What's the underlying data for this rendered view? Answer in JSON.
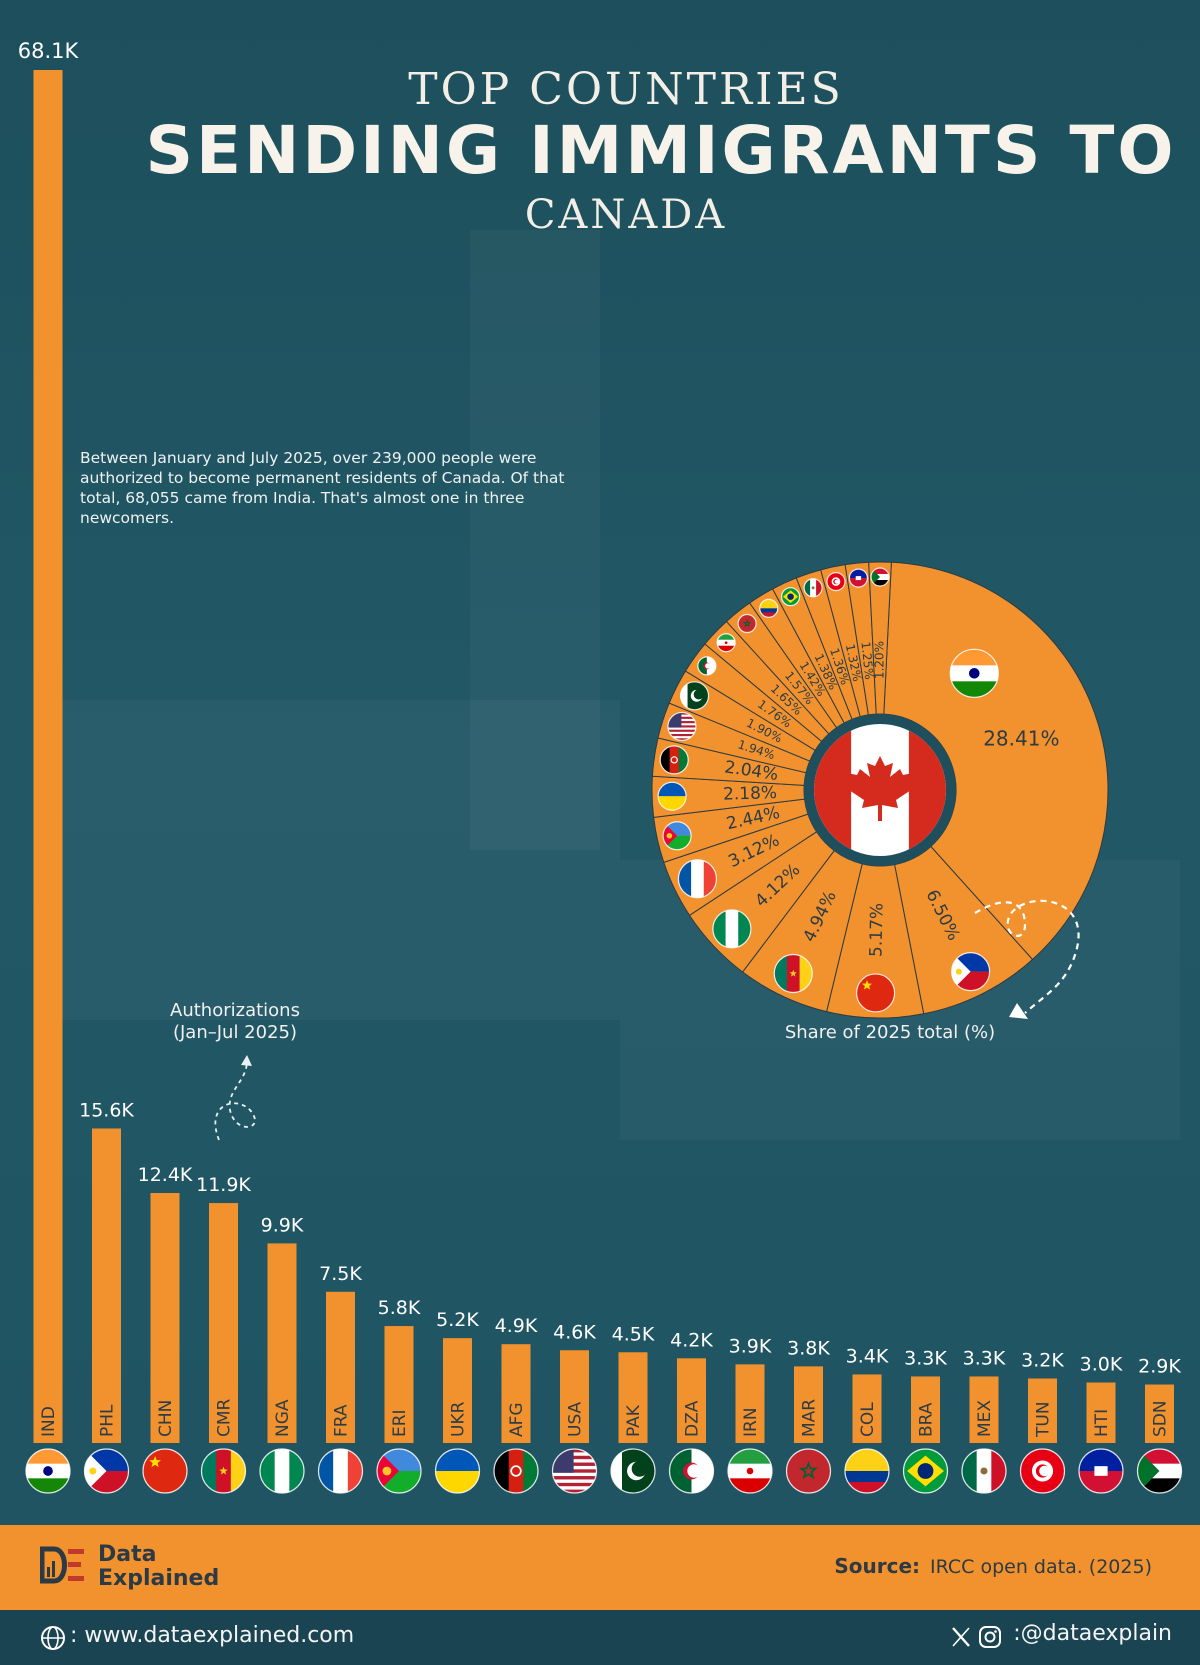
{
  "header": {
    "line1": "TOP COUNTRIES",
    "line2": "SENDING IMMIGRANTS TO",
    "line3": "CANADA"
  },
  "intro_text": "Between January and July 2025, over 239,000 people were authorized to become permanent residents of Canada. Of that total, 68,055 came from India. That's almost one in three newcomers.",
  "bar_axis_note": "Authorizations (Jan–Jul 2025)",
  "pie_caption": "Share of 2025 total (%)",
  "colors": {
    "bar": "#f2922e",
    "background": "#1f5361",
    "footer": "#f2922e",
    "footer_bottom": "#1a4452"
  },
  "chart_data": [
    {
      "type": "bar",
      "categories": [
        "IND",
        "PHL",
        "CHN",
        "CMR",
        "NGA",
        "FRA",
        "ERI",
        "UKR",
        "AFG",
        "USA",
        "PAK",
        "DZA",
        "IRN",
        "MAR",
        "COL",
        "BRA",
        "MEX",
        "TUN",
        "HTI",
        "SDN"
      ],
      "values": [
        68.1,
        15.6,
        12.4,
        11.9,
        9.9,
        7.5,
        5.8,
        5.2,
        4.9,
        4.6,
        4.5,
        4.2,
        3.9,
        3.8,
        3.4,
        3.3,
        3.3,
        3.2,
        3.0,
        2.9
      ],
      "value_labels": [
        "68.1K",
        "15.6K",
        "12.4K",
        "11.9K",
        "9.9K",
        "7.5K",
        "5.8K",
        "5.2K",
        "4.9K",
        "4.6K",
        "4.5K",
        "4.2K",
        "3.9K",
        "3.8K",
        "3.4K",
        "3.3K",
        "3.3K",
        "3.2K",
        "3.0K",
        "2.9K"
      ],
      "ylim": [
        0,
        68.1
      ],
      "grid": false
    },
    {
      "type": "pie",
      "categories": [
        "IND",
        "PHL",
        "CHN",
        "CMR",
        "NGA",
        "FRA",
        "ERI",
        "UKR",
        "AFG",
        "USA",
        "PAK",
        "DZA",
        "IRN",
        "MAR",
        "COL",
        "BRA",
        "MEX",
        "TUN",
        "HTI",
        "SDN"
      ],
      "values": [
        28.41,
        6.5,
        5.17,
        4.94,
        4.12,
        3.12,
        2.44,
        2.18,
        2.04,
        1.94,
        1.9,
        1.76,
        1.65,
        1.57,
        1.42,
        1.38,
        1.36,
        1.32,
        1.25,
        1.2
      ],
      "value_labels": [
        "28.41%",
        "6.50%",
        "5.17%",
        "4.94%",
        "4.12%",
        "3.12%",
        "2.44%",
        "2.18%",
        "2.04%",
        "1.94%",
        "1.90%",
        "1.76%",
        "1.65%",
        "1.57%",
        "1.42%",
        "1.38%",
        "1.36%",
        "1.32%",
        "1.25%",
        "1.20%"
      ],
      "center_flag": "canada-flag"
    }
  ],
  "footer": {
    "brand_line1": "Data",
    "brand_line2": "Explained",
    "source_label": "Source:",
    "source_text": "IRCC open data. (2025)",
    "website": ": www.dataexplained.com",
    "handle": ":@dataexplain"
  }
}
